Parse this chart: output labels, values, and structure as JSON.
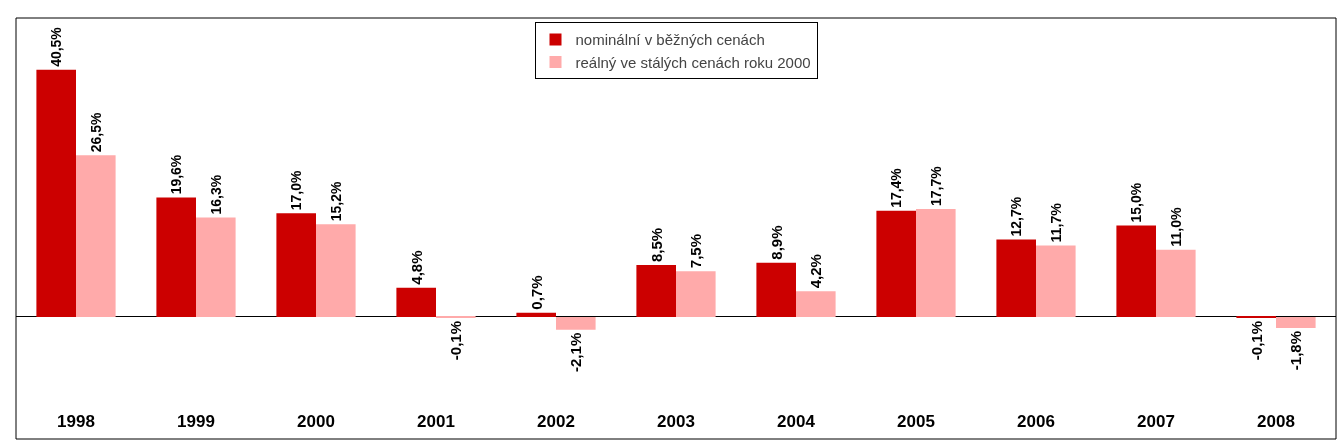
{
  "chart_data": {
    "type": "bar",
    "categories": [
      "1998",
      "1999",
      "2000",
      "2001",
      "2002",
      "2003",
      "2004",
      "2005",
      "2006",
      "2007",
      "2008"
    ],
    "series": [
      {
        "name": "nominální v běžných cenách",
        "color": "#cc0000",
        "values": [
          40.5,
          19.6,
          17.0,
          4.8,
          0.7,
          8.5,
          8.9,
          17.4,
          12.7,
          15.0,
          -0.1
        ],
        "value_labels": [
          "40,5%",
          "19,6%",
          "17,0%",
          "4,8%",
          "0,7%",
          "8,5%",
          "8,9%",
          "17,4%",
          "12,7%",
          "15,0%",
          "-0,1%"
        ]
      },
      {
        "name": "reálný ve stálých cenách roku 2000",
        "color": "#ffaaaa",
        "values": [
          26.5,
          16.3,
          15.2,
          -0.1,
          -2.1,
          7.5,
          4.2,
          17.7,
          11.7,
          11.0,
          -1.8
        ],
        "value_labels": [
          "26,5%",
          "16,3%",
          "15,2%",
          "-0,1%",
          "-2,1%",
          "7,5%",
          "4,2%",
          "17,7%",
          "11,7%",
          "11,0%",
          "-1,8%"
        ]
      }
    ],
    "ylim": [
      -20,
      49
    ],
    "tick_labels": "x",
    "grid": false,
    "legend": "top"
  }
}
